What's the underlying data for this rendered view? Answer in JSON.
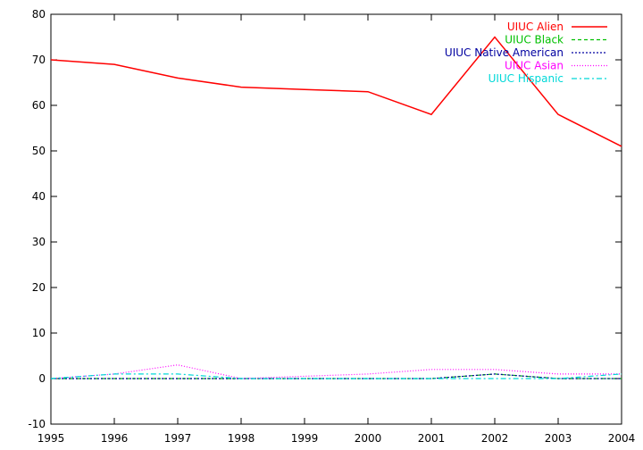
{
  "chart_data": {
    "type": "line",
    "title": "",
    "xlabel": "",
    "ylabel": "",
    "xlim": [
      1995,
      2004
    ],
    "ylim": [
      -10,
      80
    ],
    "x_ticks": [
      1995,
      1996,
      1997,
      1998,
      1999,
      2000,
      2001,
      2002,
      2003,
      2004
    ],
    "y_ticks": [
      -10,
      0,
      10,
      20,
      30,
      40,
      50,
      60,
      70,
      80
    ],
    "grid": false,
    "legend_position": "top-right",
    "x": [
      1995,
      1996,
      1997,
      1998,
      1999,
      2000,
      2001,
      2002,
      2003,
      2004
    ],
    "series": [
      {
        "name": "UIUC Alien",
        "color": "#ff0000",
        "dash": "solid",
        "values": [
          70,
          69,
          66,
          64,
          63.5,
          63,
          58,
          75,
          58,
          51
        ]
      },
      {
        "name": "UIUC Black",
        "color": "#00c000",
        "dash": "dashed",
        "values": [
          0,
          0,
          0,
          0,
          0,
          0,
          0,
          1,
          0,
          0
        ]
      },
      {
        "name": "UIUC Native American",
        "color": "#0000a0",
        "dash": "dotted",
        "values": [
          0,
          0,
          0,
          0,
          0,
          0,
          0,
          1,
          0,
          0
        ]
      },
      {
        "name": "UIUC Asian",
        "color": "#ff00ff",
        "dash": "fine-dotted",
        "values": [
          0,
          1,
          3,
          0,
          0.5,
          1,
          2,
          2,
          1,
          1
        ]
      },
      {
        "name": "UIUC Hispanic",
        "color": "#00d8d8",
        "dash": "dash-dot",
        "values": [
          0,
          1,
          1,
          0,
          0,
          0,
          0,
          0,
          0,
          1
        ]
      }
    ]
  }
}
